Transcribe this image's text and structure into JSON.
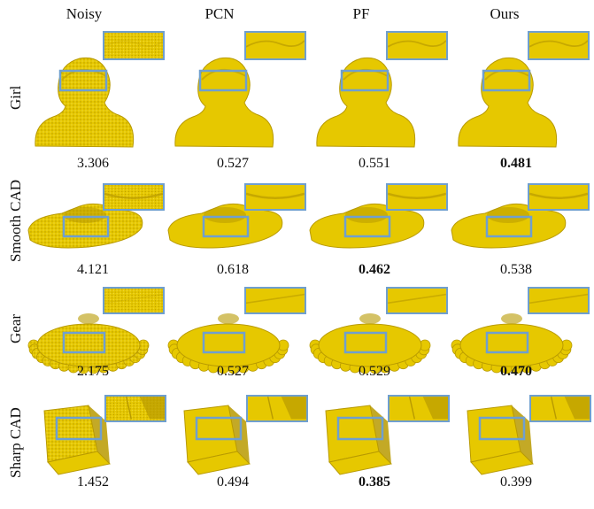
{
  "columns": [
    "Noisy",
    "PCN",
    "PF",
    "Ours"
  ],
  "rows": [
    {
      "label": "Girl",
      "scores": [
        "3.306",
        "0.527",
        "0.551",
        "0.481"
      ],
      "best": 3,
      "shape": "girl"
    },
    {
      "label": "Smooth CAD",
      "scores": [
        "4.121",
        "0.618",
        "0.462",
        "0.538"
      ],
      "best": 2,
      "shape": "smoothcad"
    },
    {
      "label": "Gear",
      "scores": [
        "2.175",
        "0.527",
        "0.529",
        "0.470"
      ],
      "best": 3,
      "shape": "gear"
    },
    {
      "label": "Sharp CAD",
      "scores": [
        "1.452",
        "0.494",
        "0.385",
        "0.399"
      ],
      "best": 2,
      "shape": "sharpcad"
    }
  ],
  "colors": {
    "object": "#e6c800",
    "object_dark": "#b89a00",
    "zoom_box": "#6f9fcf"
  }
}
